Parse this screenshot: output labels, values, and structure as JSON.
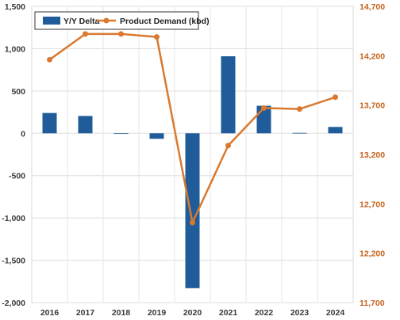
{
  "chart_data": {
    "type": "bar+line",
    "categories": [
      "2016",
      "2017",
      "2018",
      "2019",
      "2020",
      "2021",
      "2022",
      "2023",
      "2024"
    ],
    "series": [
      {
        "name": "Y/Y Delta",
        "type": "bar",
        "axis": "left",
        "color": "#1f5c99",
        "values": [
          240,
          205,
          0,
          -65,
          -1830,
          910,
          325,
          5,
          75
        ]
      },
      {
        "name": "Product Demand (kbd)",
        "type": "line",
        "axis": "right",
        "color": "#d9792f",
        "values": [
          14160,
          14420,
          14420,
          14390,
          12510,
          13290,
          13670,
          13660,
          13780
        ]
      }
    ],
    "y_left": {
      "ylim": [
        -2000,
        1500
      ],
      "ticks": [
        "1,500",
        "1,000",
        "500",
        "0",
        "-500",
        "-1,000",
        "-1,500",
        "-2,000"
      ],
      "tick_values": [
        1500,
        1000,
        500,
        0,
        -500,
        -1000,
        -1500,
        -2000
      ]
    },
    "y_right": {
      "ylim": [
        11700,
        14700
      ],
      "ticks": [
        "14,700",
        "14,200",
        "13,700",
        "13,200",
        "12,700",
        "12,200",
        "11,700"
      ],
      "tick_values": [
        14700,
        14200,
        13700,
        13200,
        12700,
        12200,
        11700
      ]
    },
    "grid": true,
    "legend_position": "top-left",
    "legend": [
      "Y/Y Delta",
      "Product Demand (kbd)"
    ]
  }
}
